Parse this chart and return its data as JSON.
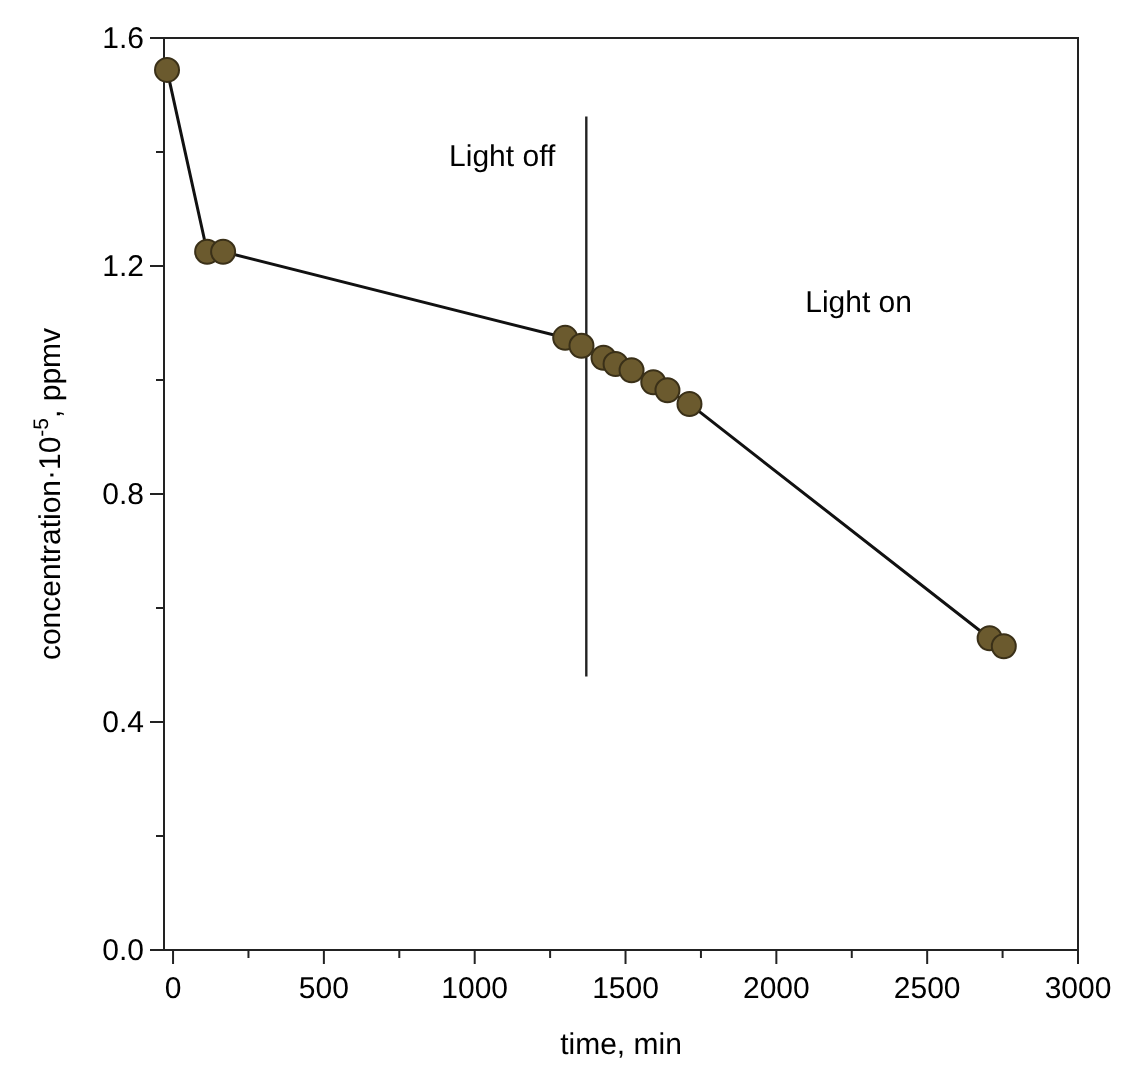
{
  "chart_data": {
    "type": "line",
    "xlabel": "time, min",
    "ylabel": "concentration·10$^{-5}$, ppmv",
    "x": [
      -20,
      113,
      166,
      1300,
      1354,
      1427,
      1467,
      1520,
      1592,
      1639,
      1712,
      2707,
      2754
    ],
    "series": [
      {
        "color": "#6b5a2e",
        "values": [
          1.544,
          1.225,
          1.225,
          1.074,
          1.06,
          1.039,
          1.028,
          1.017,
          0.996,
          0.982,
          0.958,
          0.547,
          0.533
        ]
      }
    ],
    "marker": "circle",
    "line_style": "solid",
    "xlim": [
      -30,
      3000
    ],
    "ylim": [
      0,
      1.6
    ],
    "xticks": [
      0,
      {
        "value": 250,
        "label": null
      },
      500,
      {
        "value": 750,
        "label": null
      },
      1000,
      {
        "value": 1250,
        "label": null
      },
      1500,
      {
        "value": 1750,
        "label": null
      },
      2000,
      {
        "value": 2250,
        "label": null
      },
      2500,
      {
        "value": 2750,
        "label": null
      },
      3000
    ],
    "yticks": [
      {
        "value": 0,
        "label": "0.0"
      },
      {
        "value": 0.2,
        "label": null
      },
      0.4,
      {
        "value": 0.6,
        "label": null
      },
      0.8,
      {
        "value": 1.0,
        "label": null
      },
      1.2,
      {
        "value": 1.4,
        "label": null
      },
      1.6
    ],
    "ref_lines": [
      {
        "axis": "x",
        "value": 1370,
        "color": "#222222"
      }
    ],
    "annotations": [
      "Light off",
      "Light on"
    ],
    "grid": false
  }
}
